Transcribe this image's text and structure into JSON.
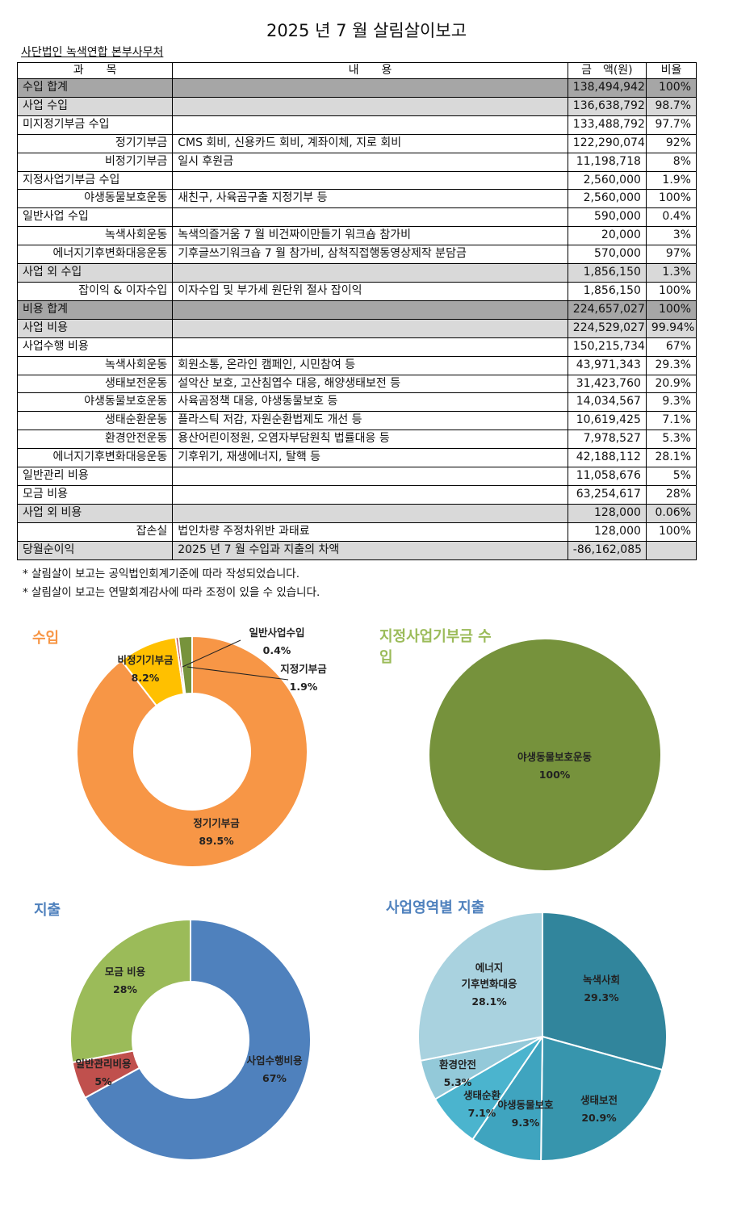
{
  "header": {
    "title": "2025 년 7 월 살림살이보고",
    "org": "사단법인 녹색연합 본부사무처"
  },
  "table": {
    "columns": [
      "과　　목",
      "내　　용",
      "금　액(원)",
      "비율"
    ],
    "rows": [
      {
        "subject": "수입 합계",
        "desc": "",
        "amount": "138,494,942",
        "ratio": "100%",
        "style": "dark",
        "indent": false
      },
      {
        "subject": "사업 수입",
        "desc": "",
        "amount": "136,638,792",
        "ratio": "98.7%",
        "style": "light",
        "indent": false
      },
      {
        "subject": "미지정기부금 수입",
        "desc": "",
        "amount": "133,488,792",
        "ratio": "97.7%",
        "style": "",
        "indent": false
      },
      {
        "subject": "정기기부금",
        "desc": "CMS 회비, 신용카드 회비, 계좌이체, 지로 회비",
        "amount": "122,290,074",
        "ratio": "92%",
        "style": "",
        "indent": true
      },
      {
        "subject": "비정기기부금",
        "desc": "일시 후원금",
        "amount": "11,198,718",
        "ratio": "8%",
        "style": "",
        "indent": true
      },
      {
        "subject": "지정사업기부금 수입",
        "desc": "",
        "amount": "2,560,000",
        "ratio": "1.9%",
        "style": "",
        "indent": false
      },
      {
        "subject": "야생동물보호운동",
        "desc": "새친구, 사육곰구출 지정기부 등",
        "amount": "2,560,000",
        "ratio": "100%",
        "style": "",
        "indent": true
      },
      {
        "subject": "일반사업 수입",
        "desc": "",
        "amount": "590,000",
        "ratio": "0.4%",
        "style": "",
        "indent": false
      },
      {
        "subject": "녹색사회운동",
        "desc": "녹색의즐거움 7 월 비건짜이만들기 워크숍 참가비",
        "amount": "20,000",
        "ratio": "3%",
        "style": "",
        "indent": true
      },
      {
        "subject": "에너지기후변화대응운동",
        "desc": "기후글쓰기워크숍 7 월 참가비, 삼척직접행동영상제작 분담금",
        "amount": "570,000",
        "ratio": "97%",
        "style": "",
        "indent": true
      },
      {
        "subject": "사업 외 수입",
        "desc": "",
        "amount": "1,856,150",
        "ratio": "1.3%",
        "style": "light",
        "indent": false
      },
      {
        "subject": "잡이익 & 이자수입",
        "desc": "이자수입 및 부가세 원단위 절사 잡이익",
        "amount": "1,856,150",
        "ratio": "100%",
        "style": "",
        "indent": true
      },
      {
        "subject": "비용 합계",
        "desc": "",
        "amount": "224,657,027",
        "ratio": "100%",
        "style": "dark",
        "indent": false
      },
      {
        "subject": "사업 비용",
        "desc": "",
        "amount": "224,529,027",
        "ratio": "99.94%",
        "style": "light",
        "indent": false
      },
      {
        "subject": "사업수행 비용",
        "desc": "",
        "amount": "150,215,734",
        "ratio": "67%",
        "style": "",
        "indent": false
      },
      {
        "subject": "녹색사회운동",
        "desc": "회원소통, 온라인 캠페인, 시민참여 등",
        "amount": "43,971,343",
        "ratio": "29.3%",
        "style": "",
        "indent": true
      },
      {
        "subject": "생태보전운동",
        "desc": "설악산 보호, 고산침엽수 대응, 해양생태보전 등",
        "amount": "31,423,760",
        "ratio": "20.9%",
        "style": "",
        "indent": true
      },
      {
        "subject": "야생동물보호운동",
        "desc": "사육곰정책 대응, 야생동물보호 등",
        "amount": "14,034,567",
        "ratio": "9.3%",
        "style": "",
        "indent": true
      },
      {
        "subject": "생태순환운동",
        "desc": "플라스틱 저감, 자원순환법제도 개선 등",
        "amount": "10,619,425",
        "ratio": "7.1%",
        "style": "",
        "indent": true
      },
      {
        "subject": "환경안전운동",
        "desc": "용산어린이정원, 오염자부담원칙 법률대응 등",
        "amount": "7,978,527",
        "ratio": "5.3%",
        "style": "",
        "indent": true
      },
      {
        "subject": "에너지기후변화대응운동",
        "desc": "기후위기, 재생에너지, 탈핵 등",
        "amount": "42,188,112",
        "ratio": "28.1%",
        "style": "",
        "indent": true
      },
      {
        "subject": "일반관리 비용",
        "desc": "",
        "amount": "11,058,676",
        "ratio": "5%",
        "style": "",
        "indent": false
      },
      {
        "subject": "모금 비용",
        "desc": "",
        "amount": "63,254,617",
        "ratio": "28%",
        "style": "",
        "indent": false
      },
      {
        "subject": "사업 외 비용",
        "desc": "",
        "amount": "128,000",
        "ratio": "0.06%",
        "style": "light",
        "indent": false
      },
      {
        "subject": "잡손실",
        "desc": "법인차량 주정차위반 과태료",
        "amount": "128,000",
        "ratio": "100%",
        "style": "",
        "indent": true
      },
      {
        "subject": "당월순이익",
        "desc": "2025 년 7 월 수입과 지출의 차액",
        "amount": "-86,162,085",
        "ratio": "",
        "style": "light",
        "indent": false
      }
    ]
  },
  "notes": [
    "* 살림살이 보고는 공익법인회계기준에 따라 작성되었습니다.",
    "* 살림살이 보고는 연말회계감사에 따라 조정이 있을 수 있습니다."
  ],
  "chart_data": [
    {
      "type": "pie",
      "title": "수입",
      "donut": true,
      "slices": [
        {
          "label": "정기기부금",
          "value": 89.5,
          "display": "89.5%",
          "color": "#f79646"
        },
        {
          "label": "비정기기부금",
          "value": 8.2,
          "display": "8.2%",
          "color": "#ffc000"
        },
        {
          "label": "일반사업수입",
          "value": 0.4,
          "display": "0.4%",
          "color": "#c0504d"
        },
        {
          "label": "지정기부금",
          "value": 1.9,
          "display": "1.9%",
          "color": "#77933c"
        }
      ]
    },
    {
      "type": "pie",
      "title": "지정사업기부금 수입",
      "donut": false,
      "slices": [
        {
          "label": "야생동물보호운동",
          "value": 100,
          "display": "100%",
          "color": "#76923c"
        }
      ]
    },
    {
      "type": "pie",
      "title": "지출",
      "donut": true,
      "slices": [
        {
          "label": "사업수행비용",
          "value": 67,
          "display": "67%",
          "color": "#4f81bd"
        },
        {
          "label": "일반관리비용",
          "value": 5,
          "display": "5%",
          "color": "#c0504d"
        },
        {
          "label": "모금 비용",
          "value": 28,
          "display": "28%",
          "color": "#9bbb59"
        }
      ]
    },
    {
      "type": "pie",
      "title": "사업영역별 지출",
      "donut": false,
      "slices": [
        {
          "label": "녹색사회",
          "value": 29.3,
          "display": "29.3%",
          "color": "#31859c"
        },
        {
          "label": "생태보전",
          "value": 20.9,
          "display": "20.9%",
          "color": "#3795ad"
        },
        {
          "label": "야생동물보호",
          "value": 9.3,
          "display": "9.3%",
          "color": "#3fa4bf"
        },
        {
          "label": "생태순환",
          "value": 7.1,
          "display": "7.1%",
          "color": "#4bb4ce"
        },
        {
          "label": "환경안전",
          "value": 5.3,
          "display": "5.3%",
          "color": "#93c9d9"
        },
        {
          "label": "에너지 기후변화대응",
          "value": 28.1,
          "display": "28.1%",
          "color": "#a9d2df"
        }
      ]
    }
  ],
  "colors": {
    "chart_title_orange": "#f79646",
    "chart_title_green": "#9bbb59",
    "chart_title_blue": "#4f81bd",
    "total_row": "#a6a6a6",
    "sub_row": "#d9d9d9"
  }
}
